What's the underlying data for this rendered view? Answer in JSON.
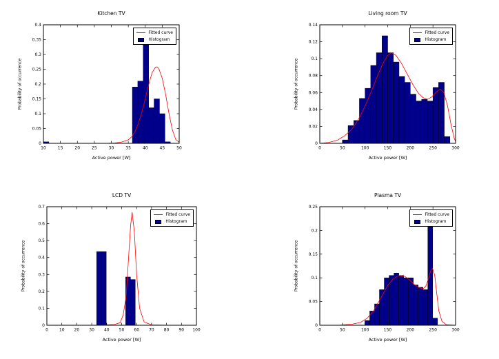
{
  "figure": {
    "background": "#ffffff",
    "bar_color": "#00008b",
    "bar_edge_color": "#000000",
    "curve_color": "#ff0000",
    "axis_color": "#000000"
  },
  "chart_data": [
    {
      "type": "bar",
      "title": "Kitchen TV",
      "xlabel": "Active power [W]",
      "ylabel": "Probability of occurrence",
      "xlim": [
        10,
        50
      ],
      "ylim": [
        0,
        0.4
      ],
      "xticks": [
        10,
        15,
        20,
        25,
        30,
        35,
        40,
        45,
        50
      ],
      "yticks": [
        0,
        0.05,
        0.1,
        0.15,
        0.2,
        0.25,
        0.3,
        0.35,
        0.4
      ],
      "legend": [
        "Fitted curve",
        "Histogram"
      ],
      "legend_position": "top-right",
      "grid": false,
      "bar_color": "#00008b",
      "bar_edge_color": "#000000",
      "curve_color": "#ff0000",
      "bin_width": 1.6,
      "bar_centers": [
        10.8,
        37.0,
        38.6,
        40.2,
        41.8,
        43.4,
        45.0,
        46.6
      ],
      "bar_heights": [
        0.005,
        0.19,
        0.21,
        0.345,
        0.12,
        0.15,
        0.1,
        0.005
      ],
      "curve": {
        "x": [
          10,
          28,
          31,
          33,
          35,
          36,
          37,
          38,
          39,
          40,
          41,
          42,
          43,
          43.5,
          44,
          45,
          46,
          47,
          48,
          49,
          50
        ],
        "y": [
          0,
          0,
          0.001,
          0.004,
          0.012,
          0.022,
          0.04,
          0.068,
          0.105,
          0.15,
          0.198,
          0.238,
          0.257,
          0.258,
          0.252,
          0.22,
          0.165,
          0.1,
          0.045,
          0.013,
          0.003
        ]
      }
    },
    {
      "type": "bar",
      "title": "Living room TV",
      "xlabel": "Active power [W]",
      "ylabel": "Probability of occurrence",
      "xlim": [
        0,
        300
      ],
      "ylim": [
        0,
        0.14
      ],
      "xticks": [
        0,
        50,
        100,
        150,
        200,
        250,
        300
      ],
      "yticks": [
        0,
        0.02,
        0.04,
        0.06,
        0.08,
        0.1,
        0.12,
        0.14
      ],
      "legend": [
        "Fitted curve",
        "Histogram"
      ],
      "legend_position": "top-right",
      "grid": false,
      "bar_color": "#00008b",
      "bar_edge_color": "#000000",
      "curve_color": "#ff0000",
      "bin_width": 12.5,
      "bar_centers": [
        56.25,
        68.75,
        81.25,
        93.75,
        106.25,
        118.75,
        131.25,
        143.75,
        156.25,
        168.75,
        181.25,
        193.75,
        206.25,
        218.75,
        231.25,
        243.75,
        256.25,
        268.75,
        281.25
      ],
      "bar_heights": [
        0.004,
        0.021,
        0.027,
        0.053,
        0.065,
        0.092,
        0.107,
        0.127,
        0.107,
        0.096,
        0.079,
        0.072,
        0.058,
        0.05,
        0.052,
        0.05,
        0.066,
        0.072,
        0.008
      ],
      "curve": {
        "x": [
          0,
          20,
          40,
          55,
          70,
          85,
          100,
          115,
          130,
          140,
          150,
          158,
          168,
          180,
          192,
          205,
          218,
          228,
          238,
          248,
          258,
          266,
          274,
          282,
          290,
          297,
          300
        ],
        "y": [
          0,
          0.001,
          0.004,
          0.009,
          0.016,
          0.028,
          0.044,
          0.063,
          0.083,
          0.095,
          0.104,
          0.107,
          0.104,
          0.095,
          0.083,
          0.07,
          0.059,
          0.054,
          0.052,
          0.055,
          0.061,
          0.064,
          0.06,
          0.045,
          0.022,
          0.006,
          0.002
        ]
      }
    },
    {
      "type": "bar",
      "title": "LCD TV",
      "xlabel": "Active power [W]",
      "ylabel": "Probability of occurrence",
      "xlim": [
        0,
        100
      ],
      "ylim": [
        0,
        0.7
      ],
      "xticks": [
        0,
        10,
        20,
        30,
        40,
        50,
        60,
        70,
        80,
        90,
        100
      ],
      "yticks": [
        0,
        0.1,
        0.2,
        0.3,
        0.4,
        0.5,
        0.6,
        0.7
      ],
      "legend": [
        "Fitted curve",
        "Histogram"
      ],
      "legend_position": "top-right",
      "grid": false,
      "bar_color": "#00008b",
      "bar_edge_color": "#000000",
      "curve_color": "#ff0000",
      "bin_width": 3.2,
      "bar_centers": [
        34.9,
        38.1,
        54.3,
        57.5
      ],
      "bar_heights": [
        0.435,
        0.435,
        0.285,
        0.27
      ],
      "curve": {
        "x": [
          0,
          20,
          35,
          45,
          49,
          51,
          53,
          54.5,
          56,
          57,
          58.5,
          60,
          62,
          65,
          70,
          85,
          100
        ],
        "y": [
          0,
          0,
          0.001,
          0.004,
          0.015,
          0.06,
          0.17,
          0.38,
          0.59,
          0.668,
          0.55,
          0.3,
          0.1,
          0.02,
          0.002,
          0,
          0
        ]
      }
    },
    {
      "type": "bar",
      "title": "Plasma TV",
      "xlabel": "Active power [W]",
      "ylabel": "Probability of occurrence",
      "xlim": [
        0,
        300
      ],
      "ylim": [
        0,
        0.25
      ],
      "xticks": [
        0,
        50,
        100,
        150,
        200,
        250,
        300
      ],
      "yticks": [
        0,
        0.05,
        0.1,
        0.15,
        0.2,
        0.25
      ],
      "legend": [
        "Fitted curve",
        "Histogram"
      ],
      "legend_position": "top-right",
      "grid": false,
      "bar_color": "#00008b",
      "bar_edge_color": "#000000",
      "curve_color": "#ff0000",
      "bin_width": 10.7,
      "bar_centers": [
        105,
        115.7,
        126.4,
        137.1,
        147.8,
        158.5,
        169.2,
        179.9,
        190.6,
        201.3,
        212,
        222.7,
        233.4,
        244.1,
        254.8
      ],
      "bar_heights": [
        0.01,
        0.03,
        0.045,
        0.075,
        0.1,
        0.105,
        0.11,
        0.105,
        0.1,
        0.1,
        0.085,
        0.08,
        0.075,
        0.21,
        0.015
      ],
      "curve": {
        "x": [
          0,
          40,
          70,
          90,
          105,
          120,
          135,
          150,
          162,
          175,
          188,
          200,
          210,
          220,
          228,
          234,
          240,
          245,
          249,
          254,
          258,
          263,
          270,
          280,
          300
        ],
        "y": [
          0,
          0,
          0.002,
          0.006,
          0.015,
          0.032,
          0.058,
          0.084,
          0.098,
          0.105,
          0.103,
          0.094,
          0.085,
          0.079,
          0.077,
          0.082,
          0.098,
          0.115,
          0.12,
          0.105,
          0.07,
          0.03,
          0.008,
          0.001,
          0
        ]
      }
    }
  ]
}
